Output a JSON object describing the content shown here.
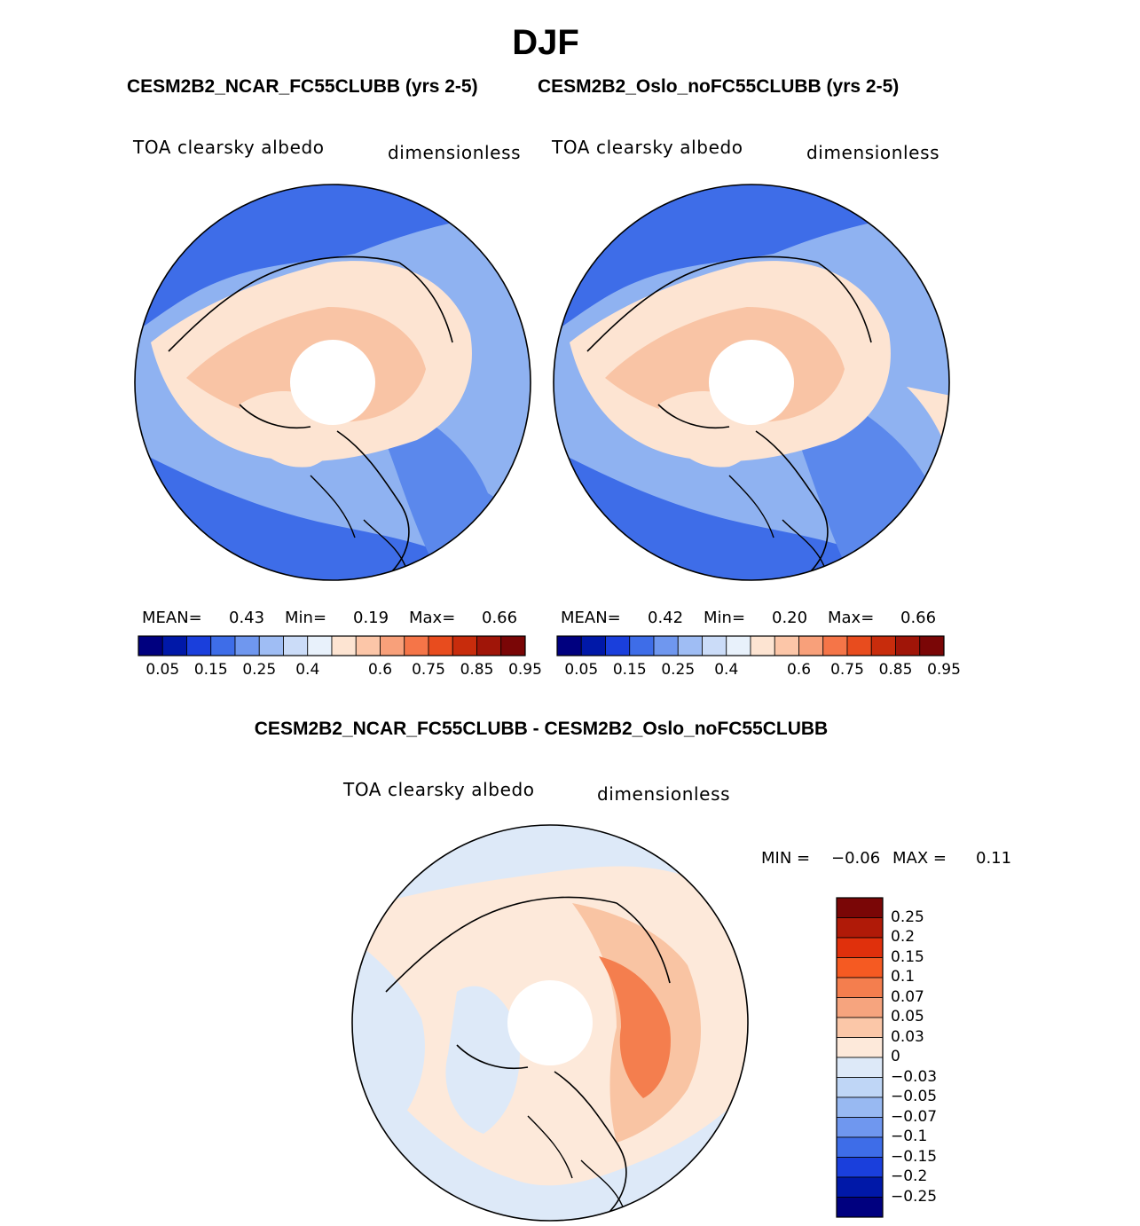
{
  "season": "DJF",
  "top_title_left": "CESM2B2_NCAR_FC55CLUBB (yrs 2-5)",
  "top_title_right": "CESM2B2_Oslo_noFC55CLUBB (yrs 2-5)",
  "diff_title": "CESM2B2_NCAR_FC55CLUBB - CESM2B2_Oslo_noFC55CLUBB",
  "variable": "TOA clearsky albedo",
  "units": "dimensionless",
  "panels": [
    {
      "name": "CESM2B2_NCAR_FC55CLUBB (yrs 2-5)",
      "variable": "TOA clearsky albedo",
      "units": "dimensionless",
      "stats": {
        "mean_label": "MEAN=",
        "mean": "0.43",
        "min_label": "Min=",
        "min": "0.19",
        "max_label": "Max=",
        "max": "0.66"
      }
    },
    {
      "name": "CESM2B2_Oslo_noFC55CLUBB (yrs 2-5)",
      "variable": "TOA clearsky albedo",
      "units": "dimensionless",
      "stats": {
        "mean_label": "MEAN=",
        "mean": "0.42",
        "min_label": "Min=",
        "min": "0.20",
        "max_label": "Max=",
        "max": "0.66"
      }
    }
  ],
  "diff_panel": {
    "variable": "TOA clearsky albedo",
    "units": "dimensionless",
    "stats": {
      "min_label": "MIN =",
      "min": "−0.06",
      "max_label": "MAX =",
      "max": "0.11"
    }
  },
  "colorbar_abs": {
    "ticks": [
      "0.05",
      "0.15",
      "0.25",
      "0.4",
      "0.6",
      "0.75",
      "0.85",
      "0.95"
    ],
    "colors": [
      "#00007f",
      "#0018a8",
      "#1a3fdc",
      "#3e6de8",
      "#6f97ef",
      "#9fbdf4",
      "#cbdcf8",
      "#e8f1fb",
      "#fde4d2",
      "#fcc6a8",
      "#f8a07a",
      "#f57548",
      "#e84c1e",
      "#c82c0c",
      "#a01508",
      "#7a0606"
    ]
  },
  "colorbar_diff": {
    "ticks": [
      "0.25",
      "0.2",
      "0.15",
      "0.1",
      "0.07",
      "0.05",
      "0.03",
      "0",
      "−0.03",
      "−0.05",
      "−0.07",
      "−0.1",
      "−0.15",
      "−0.2",
      "−0.25"
    ],
    "colors": [
      "#7a0606",
      "#b01a08",
      "#e0300c",
      "#f55a22",
      "#f47e4e",
      "#f6a47e",
      "#fbc7a8",
      "#fde9da",
      "#dde9f8",
      "#bfd6f6",
      "#98b9f2",
      "#6f97ef",
      "#3e6de8",
      "#1a3fdc",
      "#0018a8",
      "#00007f"
    ]
  },
  "map_colors": {
    "ocean_low": "#5b88ec",
    "ocean_mid": "#8fb2f1",
    "ocean_light": "#c3d6f6",
    "land_pale": "#fde4d2",
    "land_warm": "#f9c4a5",
    "pole_hole": "#ffffff",
    "diff_base": "#dde9f8",
    "diff_pos_light": "#fde9da",
    "diff_pos_mid": "#f9c4a3",
    "diff_pos_high": "#f47e4e",
    "coastline": "#000000"
  }
}
